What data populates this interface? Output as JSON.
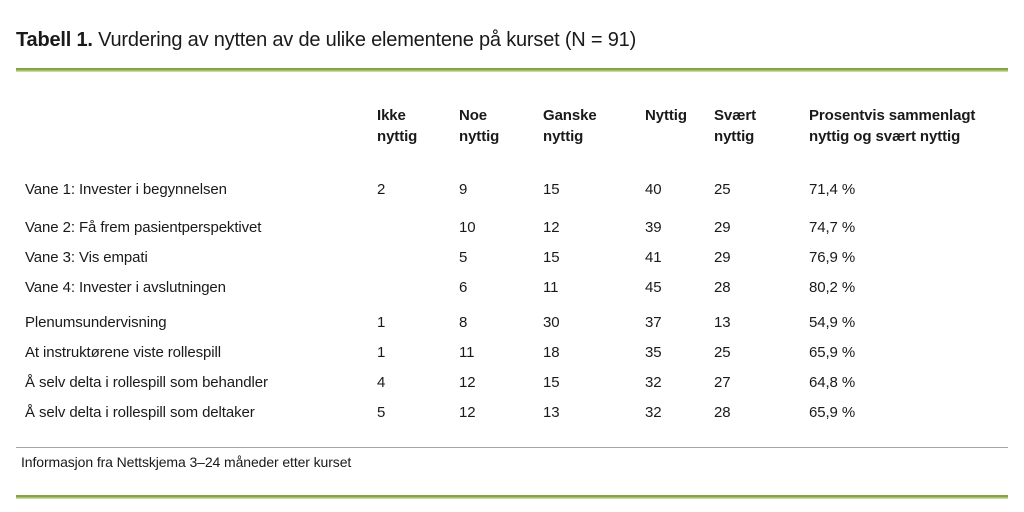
{
  "title": {
    "label": "Tabell 1.",
    "text": "Vurdering av nytten av de ulike elementene på kurset (N = 91)"
  },
  "table": {
    "headers": [
      "Ikke\nnyttig",
      "Noe\nnyttig",
      "Ganske\nnyttig",
      "Nyttig",
      "Svært\nnyttig",
      "Prosentvis sammenlagt\nnyttig og svært nyttig"
    ],
    "rows": [
      {
        "label": "Vane 1: Invester i begynnelsen",
        "values": [
          "2",
          "9",
          "15",
          "40",
          "25",
          "71,4 %"
        ]
      },
      {
        "label": "Vane 2: Få frem pasientperspektivet",
        "values": [
          "",
          "10",
          "12",
          "39",
          "29",
          "74,7 %"
        ]
      },
      {
        "label": "Vane 3: Vis empati",
        "values": [
          "",
          "5",
          "15",
          "41",
          "29",
          "76,9 %"
        ]
      },
      {
        "label": "Vane 4: Invester i avslutningen",
        "values": [
          "",
          "6",
          "11",
          "45",
          "28",
          "80,2 %"
        ]
      },
      {
        "label": "Plenumsundervisning",
        "values": [
          "1",
          "8",
          "30",
          "37",
          "13",
          "54,9 %"
        ]
      },
      {
        "label": "At instruktørene viste rollespill",
        "values": [
          "1",
          "11",
          "18",
          "35",
          "25",
          "65,9 %"
        ]
      },
      {
        "label": "Å selv delta i rollespill som behandler",
        "values": [
          "4",
          "12",
          "15",
          "32",
          "27",
          "64,8 %"
        ]
      },
      {
        "label": "Å selv delta i rollespill som deltaker",
        "values": [
          "5",
          "12",
          "13",
          "32",
          "28",
          "65,9 %"
        ]
      }
    ]
  },
  "footnote": "Informasjon fra Nettskjema 3–24 måneder etter kurset",
  "colors": {
    "accent_green_dark": "#87a440",
    "accent_green_light": "#c9dba2",
    "divider_gray": "#a6a6a6",
    "text": "#1a1a1a"
  }
}
